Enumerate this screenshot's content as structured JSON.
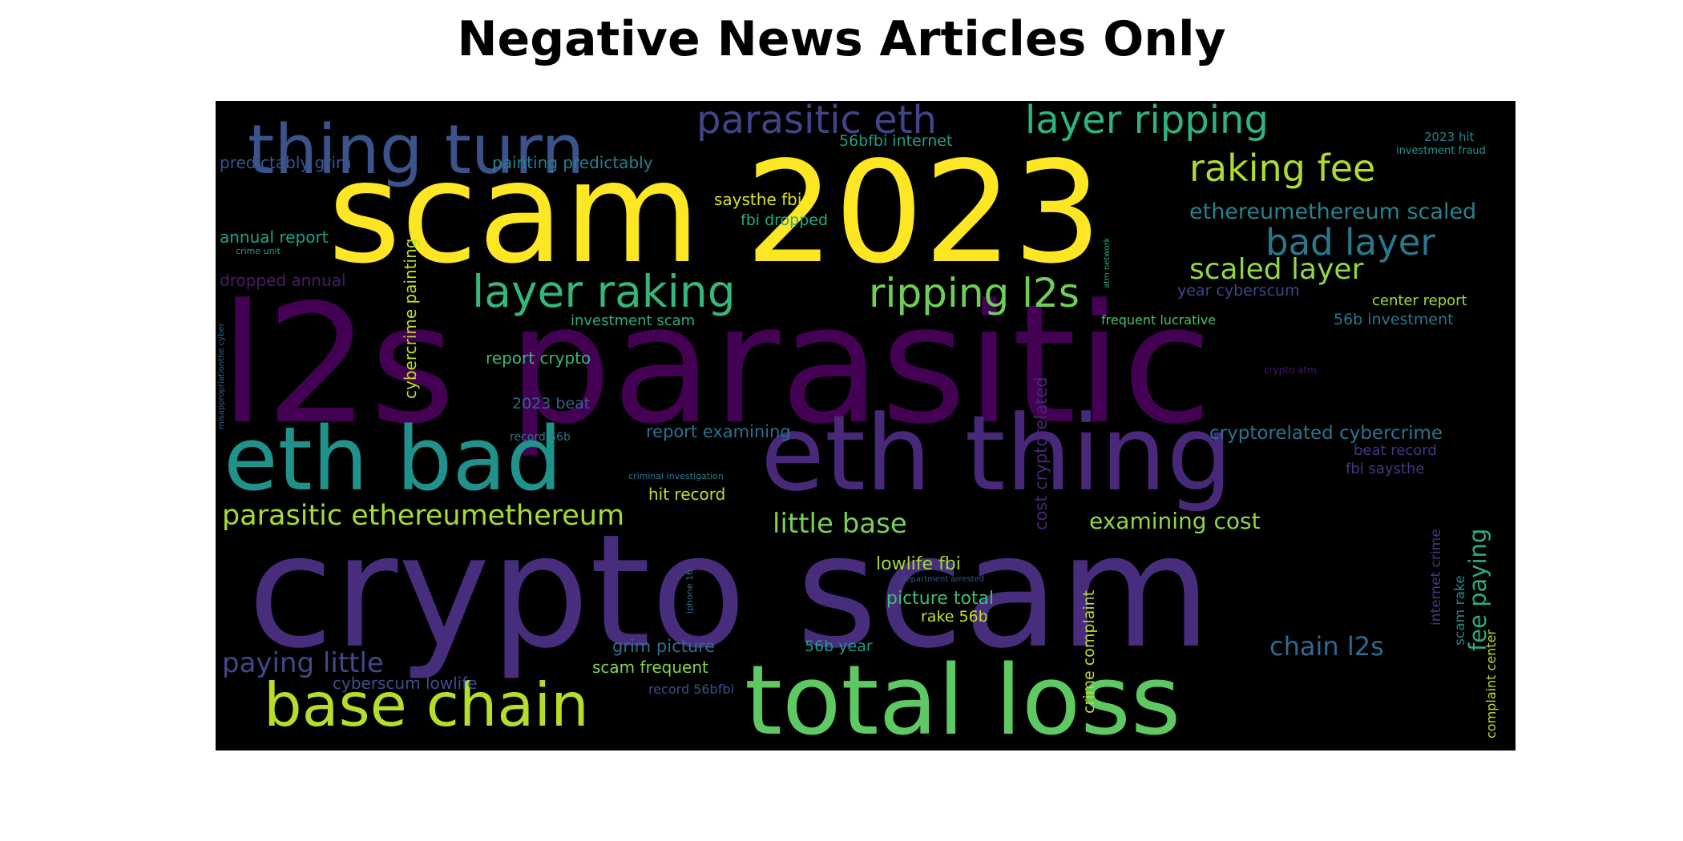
{
  "title": "Negative News Articles Only",
  "background_color": "#000000",
  "words": [
    {
      "text": "l2s parasitic",
      "color": "#440154"
    },
    {
      "text": "crypto scam",
      "color": "#472d7b"
    },
    {
      "text": "scam 2023",
      "color": "#fde725"
    },
    {
      "text": "total loss",
      "color": "#5ec962"
    },
    {
      "text": "eth thing",
      "color": "#482878"
    },
    {
      "text": "eth bad",
      "color": "#21918c"
    },
    {
      "text": "thing turn",
      "color": "#3b528b"
    },
    {
      "text": "base chain",
      "color": "#b5de2b"
    },
    {
      "text": "layer ripping",
      "color": "#2fb47c"
    },
    {
      "text": "parasitic eth",
      "color": "#414487"
    },
    {
      "text": "raking fee",
      "color": "#addc30"
    },
    {
      "text": "layer raking",
      "color": "#35b779"
    },
    {
      "text": "ripping l2s",
      "color": "#6ece58"
    },
    {
      "text": "bad layer",
      "color": "#2a788e"
    },
    {
      "text": "scaled layer",
      "color": "#90d743"
    },
    {
      "text": "parasitic ethereumethereum",
      "color": "#a5db36"
    },
    {
      "text": "little base",
      "color": "#7ad151"
    },
    {
      "text": "paying little",
      "color": "#3e4a89"
    },
    {
      "text": "chain l2s",
      "color": "#31688e"
    },
    {
      "text": "ethereumethereum scaled",
      "color": "#26828e"
    },
    {
      "text": "examining cost",
      "color": "#8fd744"
    },
    {
      "text": "fee paying",
      "color": "#28ae80"
    },
    {
      "text": "cryptorelated cybercrime",
      "color": "#2c728e"
    },
    {
      "text": "predictably grim",
      "color": "#39568c"
    },
    {
      "text": "painting predictably",
      "color": "#277f8e"
    },
    {
      "text": "56bfbi internet",
      "color": "#1f9e89"
    },
    {
      "text": "saysthe fbi",
      "color": "#d8e219"
    },
    {
      "text": "fbi dropped",
      "color": "#22a884"
    },
    {
      "text": "annual report",
      "color": "#1fa187"
    },
    {
      "text": "dropped annual",
      "color": "#481a6c"
    },
    {
      "text": "cybercrime painting",
      "color": "#bddf26"
    },
    {
      "text": "investment scam",
      "color": "#29af7f"
    },
    {
      "text": "report crypto",
      "color": "#37b878"
    },
    {
      "text": "2023 beat",
      "color": "#33638d"
    },
    {
      "text": "report examining",
      "color": "#2d708e"
    },
    {
      "text": "hit record",
      "color": "#c2df23"
    },
    {
      "text": "cost cryptorelated",
      "color": "#482677"
    },
    {
      "text": "lowlife fbi",
      "color": "#a0da39"
    },
    {
      "text": "picture total",
      "color": "#3dbc74"
    },
    {
      "text": "rake 56b",
      "color": "#c8e020"
    },
    {
      "text": "grim picture",
      "color": "#2e6f8e"
    },
    {
      "text": "56b year",
      "color": "#1e9b8a"
    },
    {
      "text": "scam frequent",
      "color": "#84d44b"
    },
    {
      "text": "cyberscum lowlife",
      "color": "#3b518b"
    },
    {
      "text": "record 56bfbi",
      "color": "#3c4f8a"
    },
    {
      "text": "crime complaint",
      "color": "#b8de29"
    },
    {
      "text": "year cyberscum",
      "color": "#3f4788"
    },
    {
      "text": "center report",
      "color": "#9dd93b"
    },
    {
      "text": "56b investment",
      "color": "#2a768e"
    },
    {
      "text": "frequent lucrative",
      "color": "#4ac16d"
    },
    {
      "text": "beat record",
      "color": "#46337f"
    },
    {
      "text": "fbi saysthe",
      "color": "#453882"
    },
    {
      "text": "internet crime",
      "color": "#443983"
    },
    {
      "text": "scam rake",
      "color": "#24868e"
    },
    {
      "text": "complaint center",
      "color": "#c0df25"
    },
    {
      "text": "2023 hit",
      "color": "#25848e"
    },
    {
      "text": "investment fraud",
      "color": "#1f968b"
    },
    {
      "text": "crime unit",
      "color": "#1f9a8a"
    },
    {
      "text": "misappropriationthe cyber",
      "color": "#32658e"
    },
    {
      "text": "record 56b",
      "color": "#2b748e"
    },
    {
      "text": "criminal investigation",
      "color": "#297a8e"
    },
    {
      "text": "iphone 16",
      "color": "#2c718e"
    },
    {
      "text": "department arrested",
      "color": "#3b528b"
    },
    {
      "text": "atm network",
      "color": "#24aa83"
    },
    {
      "text": "crypto atm",
      "color": "#481769"
    }
  ]
}
